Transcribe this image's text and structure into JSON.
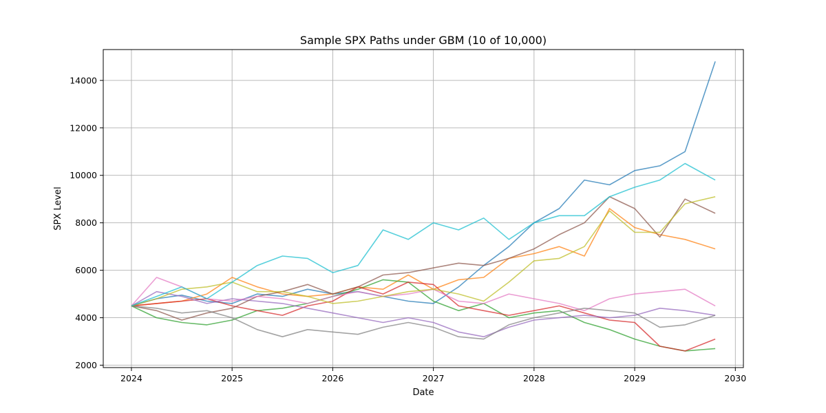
{
  "chart_data": {
    "type": "line",
    "title": "Sample SPX Paths under GBM (10 of 10,000)",
    "xlabel": "Date",
    "ylabel": "SPX Level",
    "xlim": [
      2023.72,
      2030.08
    ],
    "ylim": [
      1900,
      15300
    ],
    "x_ticks": [
      2024,
      2025,
      2026,
      2027,
      2028,
      2029,
      2030
    ],
    "x_tick_labels": [
      "2024",
      "2025",
      "2026",
      "2027",
      "2028",
      "2029",
      "2030"
    ],
    "y_ticks": [
      2000,
      4000,
      6000,
      8000,
      10000,
      12000,
      14000
    ],
    "y_tick_labels": [
      "2000",
      "4000",
      "6000",
      "8000",
      "10000",
      "12000",
      "14000"
    ],
    "grid": true,
    "x": [
      2024.0,
      2024.25,
      2024.5,
      2024.75,
      2025.0,
      2025.25,
      2025.5,
      2025.75,
      2026.0,
      2026.25,
      2026.5,
      2026.75,
      2027.0,
      2027.25,
      2027.5,
      2027.75,
      2028.0,
      2028.25,
      2028.5,
      2028.75,
      2029.0,
      2029.25,
      2029.5,
      2029.8
    ],
    "series": [
      {
        "color": "#1f77b4",
        "values": [
          4500,
          4800,
          4950,
          4700,
          4600,
          5000,
          4900,
          5200,
          5000,
          5100,
          4900,
          4700,
          4600,
          5300,
          6200,
          7000,
          8000,
          8600,
          9800,
          9600,
          10200,
          10400,
          11000,
          14800
        ]
      },
      {
        "color": "#ff7f0e",
        "values": [
          4500,
          4600,
          4700,
          5000,
          5700,
          5300,
          5000,
          4900,
          5000,
          5300,
          5200,
          5800,
          5200,
          5600,
          5700,
          6500,
          6700,
          7000,
          6600,
          8600,
          7800,
          7500,
          7300,
          6900
        ]
      },
      {
        "color": "#2ca02c",
        "values": [
          4500,
          4000,
          3800,
          3700,
          3900,
          4300,
          4400,
          4600,
          4900,
          5200,
          5600,
          5500,
          4700,
          4300,
          4600,
          4000,
          4200,
          4300,
          3800,
          3500,
          3100,
          2800,
          2600,
          2700
        ]
      },
      {
        "color": "#d62728",
        "values": [
          4500,
          4600,
          4700,
          4800,
          4500,
          4300,
          4100,
          4500,
          4700,
          5300,
          5000,
          5500,
          5400,
          4500,
          4300,
          4100,
          4300,
          4500,
          4200,
          3900,
          3800,
          2800,
          2600,
          3100
        ]
      },
      {
        "color": "#9467bd",
        "values": [
          4500,
          5100,
          4900,
          4600,
          4800,
          4700,
          4600,
          4400,
          4200,
          4000,
          3800,
          4000,
          3800,
          3400,
          3200,
          3600,
          3900,
          4000,
          4100,
          4000,
          4100,
          4400,
          4300,
          4100
        ]
      },
      {
        "color": "#8c564b",
        "values": [
          4500,
          4300,
          3900,
          4200,
          4400,
          4900,
          5100,
          5400,
          5000,
          5300,
          5800,
          5900,
          6100,
          6300,
          6200,
          6500,
          6900,
          7500,
          8000,
          9100,
          8600,
          7400,
          9000,
          8400
        ]
      },
      {
        "color": "#e377c2",
        "values": [
          4500,
          5700,
          5300,
          4800,
          4700,
          4900,
          4800,
          4600,
          4900,
          5100,
          4900,
          5000,
          5200,
          4700,
          4600,
          5000,
          4800,
          4600,
          4300,
          4800,
          5000,
          5100,
          5200,
          4500
        ]
      },
      {
        "color": "#7f7f7f",
        "values": [
          4500,
          4400,
          4200,
          4300,
          4000,
          3500,
          3200,
          3500,
          3400,
          3300,
          3600,
          3800,
          3600,
          3200,
          3100,
          3700,
          4000,
          4200,
          4400,
          4300,
          4200,
          3600,
          3700,
          4100
        ]
      },
      {
        "color": "#bcbd22",
        "values": [
          4500,
          4800,
          5200,
          5300,
          5500,
          5100,
          5100,
          4900,
          4600,
          4700,
          4900,
          5100,
          5200,
          5000,
          4700,
          5500,
          6400,
          6500,
          7000,
          8500,
          7600,
          7600,
          8800,
          9100
        ]
      },
      {
        "color": "#17becf",
        "values": [
          4500,
          4900,
          5300,
          4800,
          5500,
          6200,
          6600,
          6500,
          5900,
          6200,
          7700,
          7300,
          8000,
          7700,
          8200,
          7300,
          8000,
          8300,
          8300,
          9100,
          9500,
          9800,
          10500,
          9800
        ]
      }
    ]
  }
}
